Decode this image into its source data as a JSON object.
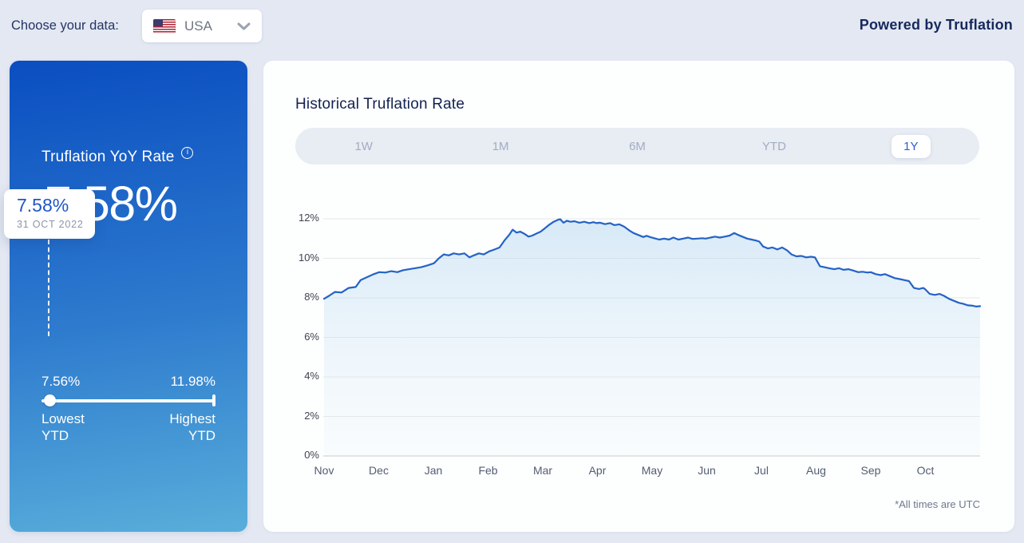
{
  "header": {
    "choose_label": "Choose your data:",
    "country_selector": {
      "value": "USA",
      "flag": "us-flag"
    },
    "powered_by": "Powered by Truflation"
  },
  "summary_card": {
    "title": "Truflation YoY Rate",
    "info_icon_glyph": "i",
    "value": "7.58%",
    "tooltip": {
      "value": "7.58%",
      "date": "31 OCT 2022"
    },
    "range": {
      "low_value": "7.56%",
      "high_value": "11.98%",
      "low_label_line1": "Lowest",
      "low_label_line2": "YTD",
      "high_label_line1": "Highest",
      "high_label_line2": "YTD"
    }
  },
  "chart_card": {
    "title": "Historical Truflation Rate",
    "tabs": [
      {
        "label": "1W",
        "selected": false
      },
      {
        "label": "1M",
        "selected": false
      },
      {
        "label": "6M",
        "selected": false
      },
      {
        "label": "YTD",
        "selected": false
      },
      {
        "label": "1Y",
        "selected": true
      }
    ],
    "footnote": "*All times are UTC"
  },
  "chart_data": {
    "type": "area",
    "title": "Historical Truflation Rate",
    "x_tick_labels": [
      "Nov",
      "Dec",
      "Jan",
      "Feb",
      "Mar",
      "Apr",
      "May",
      "Jun",
      "Jul",
      "Aug",
      "Sep",
      "Oct"
    ],
    "x_range": [
      "Nov 2021",
      "Oct 2022"
    ],
    "x_unit": "months since 1 Nov 2021",
    "y_ticks": [
      0,
      2,
      4,
      6,
      8,
      10,
      12
    ],
    "y_tick_suffix": "%",
    "ylim": [
      0,
      12
    ],
    "grid": true,
    "legend": false,
    "latest_value": 7.58,
    "lowest_ytd": 7.56,
    "highest_ytd": 11.98,
    "points": [
      [
        0,
        7.95
      ],
      [
        0.09,
        8.1
      ],
      [
        0.2,
        8.3
      ],
      [
        0.32,
        8.27
      ],
      [
        0.45,
        8.5
      ],
      [
        0.58,
        8.55
      ],
      [
        0.67,
        8.9
      ],
      [
        0.79,
        9.05
      ],
      [
        0.91,
        9.2
      ],
      [
        1.01,
        9.3
      ],
      [
        1.12,
        9.28
      ],
      [
        1.23,
        9.35
      ],
      [
        1.34,
        9.3
      ],
      [
        1.45,
        9.4
      ],
      [
        1.56,
        9.45
      ],
      [
        1.66,
        9.5
      ],
      [
        1.78,
        9.55
      ],
      [
        1.9,
        9.65
      ],
      [
        2.01,
        9.75
      ],
      [
        2.1,
        10.0
      ],
      [
        2.19,
        10.2
      ],
      [
        2.28,
        10.15
      ],
      [
        2.37,
        10.25
      ],
      [
        2.47,
        10.2
      ],
      [
        2.57,
        10.25
      ],
      [
        2.66,
        10.05
      ],
      [
        2.74,
        10.15
      ],
      [
        2.83,
        10.25
      ],
      [
        2.92,
        10.2
      ],
      [
        3.02,
        10.35
      ],
      [
        3.12,
        10.45
      ],
      [
        3.21,
        10.55
      ],
      [
        3.3,
        10.9
      ],
      [
        3.39,
        11.2
      ],
      [
        3.45,
        11.45
      ],
      [
        3.52,
        11.3
      ],
      [
        3.59,
        11.35
      ],
      [
        3.66,
        11.25
      ],
      [
        3.74,
        11.1
      ],
      [
        3.81,
        11.15
      ],
      [
        3.88,
        11.25
      ],
      [
        3.96,
        11.35
      ],
      [
        4.03,
        11.5
      ],
      [
        4.12,
        11.7
      ],
      [
        4.2,
        11.85
      ],
      [
        4.28,
        11.95
      ],
      [
        4.32,
        11.98
      ],
      [
        4.38,
        11.8
      ],
      [
        4.44,
        11.9
      ],
      [
        4.51,
        11.85
      ],
      [
        4.58,
        11.88
      ],
      [
        4.67,
        11.8
      ],
      [
        4.76,
        11.85
      ],
      [
        4.85,
        11.78
      ],
      [
        4.93,
        11.83
      ],
      [
        4.98,
        11.78
      ],
      [
        5.05,
        11.8
      ],
      [
        5.14,
        11.73
      ],
      [
        5.23,
        11.78
      ],
      [
        5.31,
        11.68
      ],
      [
        5.4,
        11.72
      ],
      [
        5.49,
        11.6
      ],
      [
        5.58,
        11.42
      ],
      [
        5.66,
        11.28
      ],
      [
        5.75,
        11.18
      ],
      [
        5.84,
        11.08
      ],
      [
        5.9,
        11.14
      ],
      [
        5.96,
        11.08
      ],
      [
        6.04,
        11.02
      ],
      [
        6.13,
        10.95
      ],
      [
        6.22,
        11.0
      ],
      [
        6.31,
        10.95
      ],
      [
        6.39,
        11.05
      ],
      [
        6.48,
        10.95
      ],
      [
        6.57,
        11.0
      ],
      [
        6.66,
        11.05
      ],
      [
        6.74,
        10.98
      ],
      [
        6.83,
        11.0
      ],
      [
        6.92,
        11.02
      ],
      [
        6.98,
        11.0
      ],
      [
        7.07,
        11.05
      ],
      [
        7.15,
        11.1
      ],
      [
        7.24,
        11.05
      ],
      [
        7.33,
        11.1
      ],
      [
        7.42,
        11.15
      ],
      [
        7.5,
        11.28
      ],
      [
        7.56,
        11.2
      ],
      [
        7.65,
        11.1
      ],
      [
        7.74,
        11.0
      ],
      [
        7.82,
        10.95
      ],
      [
        7.9,
        10.9
      ],
      [
        7.96,
        10.85
      ],
      [
        8.03,
        10.6
      ],
      [
        8.12,
        10.5
      ],
      [
        8.2,
        10.55
      ],
      [
        8.29,
        10.45
      ],
      [
        8.38,
        10.55
      ],
      [
        8.47,
        10.4
      ],
      [
        8.55,
        10.2
      ],
      [
        8.64,
        10.1
      ],
      [
        8.73,
        10.12
      ],
      [
        8.82,
        10.05
      ],
      [
        8.91,
        10.08
      ],
      [
        8.98,
        10.05
      ],
      [
        9.07,
        9.6
      ],
      [
        9.15,
        9.55
      ],
      [
        9.24,
        9.5
      ],
      [
        9.33,
        9.45
      ],
      [
        9.42,
        9.5
      ],
      [
        9.5,
        9.42
      ],
      [
        9.59,
        9.45
      ],
      [
        9.68,
        9.38
      ],
      [
        9.77,
        9.3
      ],
      [
        9.85,
        9.32
      ],
      [
        9.94,
        9.28
      ],
      [
        10.0,
        9.3
      ],
      [
        10.09,
        9.2
      ],
      [
        10.18,
        9.15
      ],
      [
        10.26,
        9.2
      ],
      [
        10.35,
        9.1
      ],
      [
        10.44,
        9.0
      ],
      [
        10.53,
        8.95
      ],
      [
        10.61,
        8.9
      ],
      [
        10.7,
        8.85
      ],
      [
        10.79,
        8.5
      ],
      [
        10.88,
        8.45
      ],
      [
        10.96,
        8.5
      ],
      [
        10.99,
        8.45
      ],
      [
        11.08,
        8.2
      ],
      [
        11.17,
        8.15
      ],
      [
        11.26,
        8.2
      ],
      [
        11.34,
        8.1
      ],
      [
        11.43,
        7.95
      ],
      [
        11.52,
        7.85
      ],
      [
        11.61,
        7.75
      ],
      [
        11.69,
        7.7
      ],
      [
        11.78,
        7.62
      ],
      [
        11.87,
        7.6
      ],
      [
        11.93,
        7.56
      ],
      [
        12,
        7.58
      ]
    ]
  },
  "colors": {
    "page_bg": "#e3e8f2",
    "card_gradient_top": "#0a4ec1",
    "card_gradient_bottom": "#58aeda",
    "line": "#2463c5",
    "area_fill_top": "rgba(184,216,241,0.55)",
    "area_fill_bottom": "rgba(220,236,249,0.12)",
    "gridline": "#e6e7ea",
    "gridline_zero": "#c6c9cf",
    "tab_selected_text": "#2e5bd7",
    "tooltip_value_text": "#1e56c8"
  }
}
